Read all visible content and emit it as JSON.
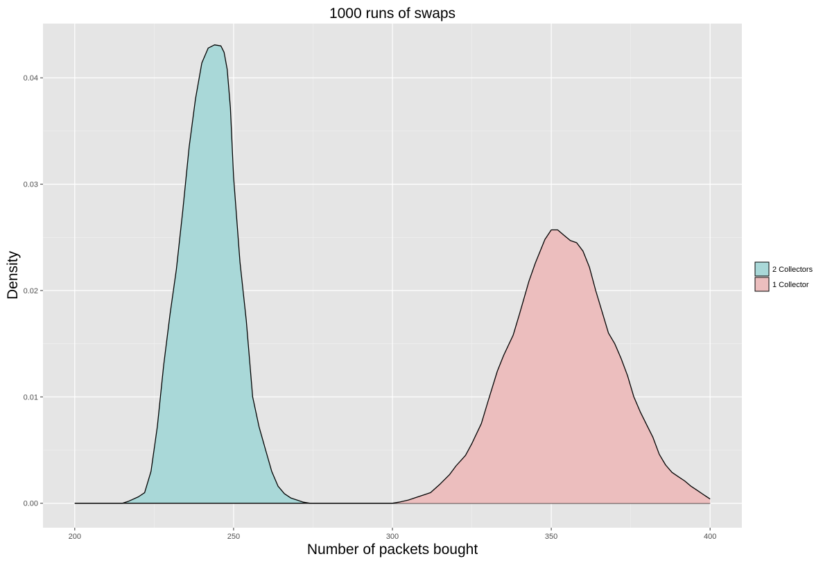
{
  "chart_data": {
    "type": "area",
    "title": "1000 runs of swaps",
    "xlabel": "Number of packets bought",
    "ylabel": "Density",
    "xlim": [
      190,
      410
    ],
    "ylim": [
      -0.0023,
      0.0451
    ],
    "x_ticks": [
      200,
      250,
      300,
      350,
      400
    ],
    "x_tick_labels": [
      "200",
      "250",
      "300",
      "350",
      "400"
    ],
    "y_ticks": [
      0.0,
      0.01,
      0.02,
      0.03,
      0.04
    ],
    "y_tick_labels": [
      "0.00",
      "0.01",
      "0.02",
      "0.03",
      "0.04"
    ],
    "grid": true,
    "legend_position": "right",
    "series": [
      {
        "name": "2 Collectors",
        "color": "#a9d8d8",
        "x": [
          200,
          215,
          217,
          220,
          222,
          224,
          226,
          228,
          230,
          232,
          234,
          236,
          238,
          240,
          242,
          244,
          246,
          247,
          248,
          249,
          250,
          252,
          254,
          256,
          258,
          260,
          262,
          264,
          266,
          268,
          270,
          272,
          274,
          276,
          278,
          280,
          300,
          400
        ],
        "y": [
          0,
          0,
          0.0002,
          0.0006,
          0.001,
          0.003,
          0.0072,
          0.013,
          0.0178,
          0.022,
          0.0275,
          0.0335,
          0.038,
          0.0414,
          0.0428,
          0.0431,
          0.043,
          0.0424,
          0.0408,
          0.0372,
          0.0307,
          0.0227,
          0.0172,
          0.01,
          0.0072,
          0.0051,
          0.003,
          0.0016,
          0.0009,
          0.0005,
          0.0003,
          0.0001,
          0,
          0,
          0,
          0,
          0,
          0
        ]
      },
      {
        "name": "1 Collector",
        "color": "#ecbebe",
        "x": [
          200,
          300,
          302,
          305,
          308,
          310,
          312,
          315,
          318,
          320,
          323,
          325,
          328,
          330,
          333,
          335,
          338,
          340,
          343,
          345,
          348,
          350,
          352,
          354,
          356,
          358,
          360,
          362,
          364,
          366,
          368,
          370,
          372,
          374,
          376,
          378,
          380,
          382,
          384,
          386,
          388,
          390,
          392,
          394,
          396,
          398,
          400
        ],
        "y": [
          0,
          0,
          0.0001,
          0.0003,
          0.0006,
          0.0008,
          0.001,
          0.0018,
          0.0027,
          0.0035,
          0.0045,
          0.0056,
          0.0075,
          0.0095,
          0.0124,
          0.0139,
          0.0158,
          0.0178,
          0.0209,
          0.0226,
          0.0248,
          0.0257,
          0.0257,
          0.0252,
          0.0247,
          0.0245,
          0.0237,
          0.0222,
          0.02,
          0.018,
          0.016,
          0.015,
          0.0136,
          0.012,
          0.01,
          0.0086,
          0.0074,
          0.0062,
          0.0046,
          0.0036,
          0.0029,
          0.0025,
          0.0021,
          0.0016,
          0.0012,
          0.0008,
          0.0004
        ]
      }
    ]
  }
}
